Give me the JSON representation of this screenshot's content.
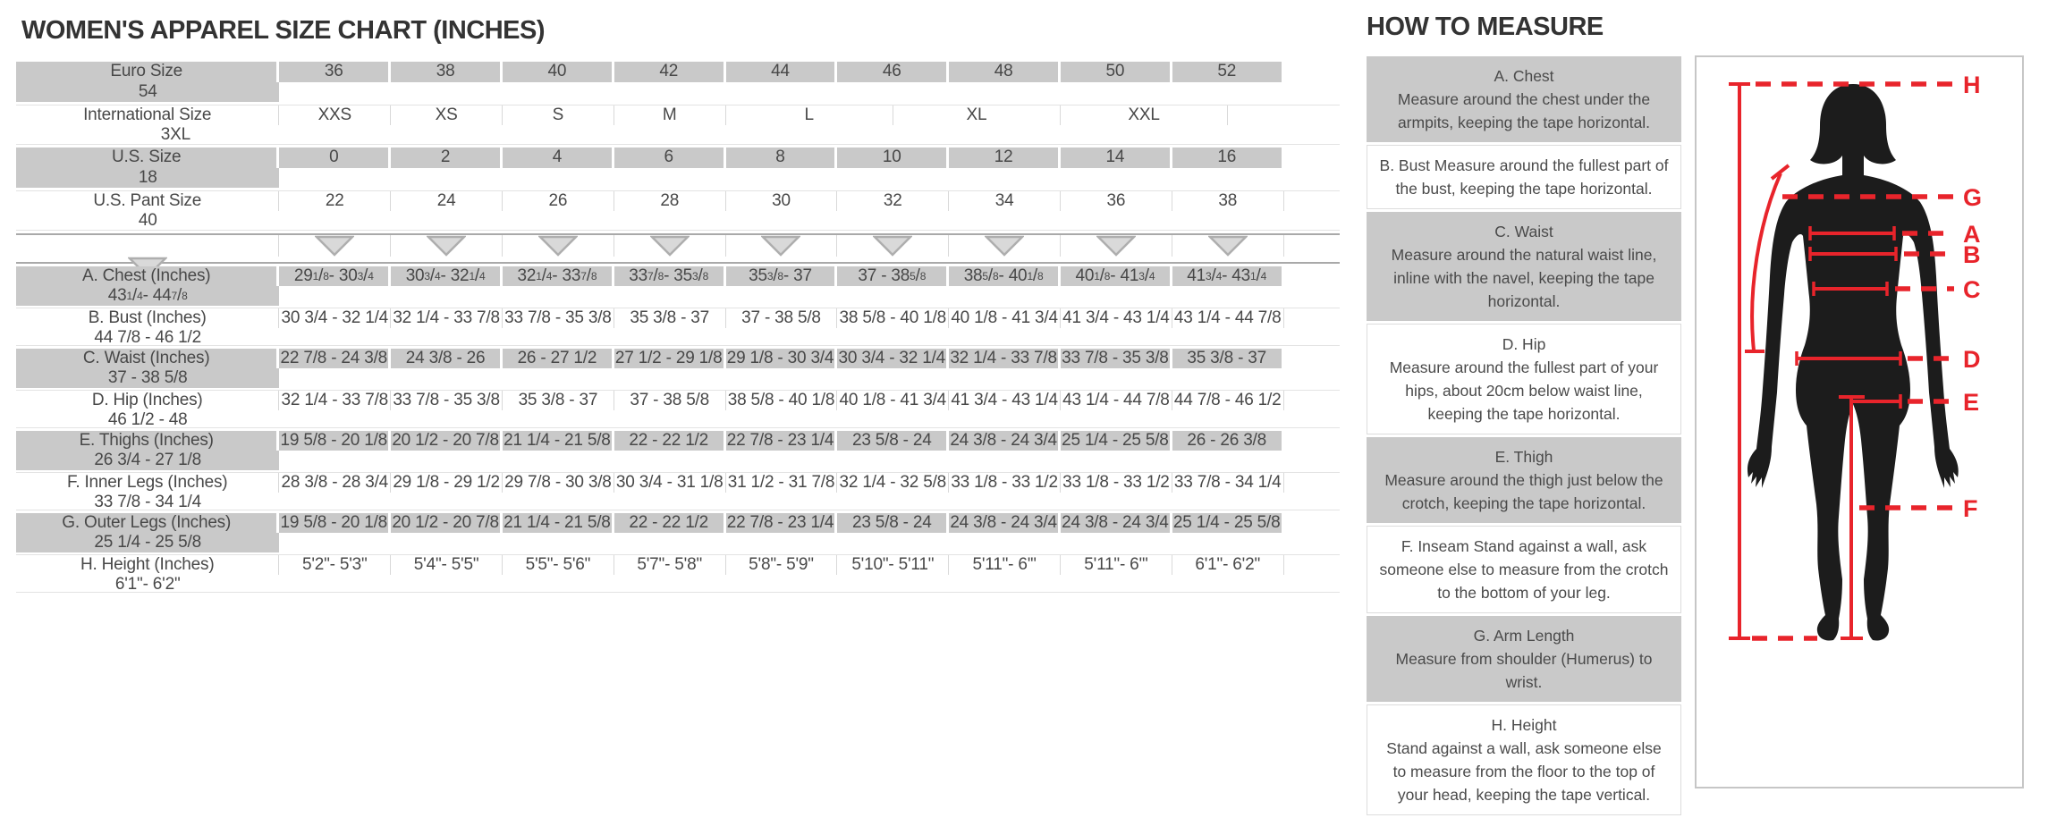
{
  "size_chart": {
    "title": "WOMEN'S APPAREL SIZE CHART (INCHES)",
    "rows": [
      {
        "label": "Euro Size",
        "shade": "gray",
        "cells": [
          "36",
          "38",
          "40",
          "42",
          "44",
          "46",
          "48",
          "50",
          "52",
          "54"
        ]
      },
      {
        "label": "International Size",
        "shade": "white",
        "cells": [
          {
            "text": "XXS",
            "span": 2
          },
          {
            "text": "XS",
            "span": 2
          },
          {
            "text": "S",
            "span": 2
          },
          {
            "text": "M",
            "span": 2
          },
          {
            "text": "L",
            "span": 3
          },
          {
            "text": "XL",
            "span": 3
          },
          {
            "text": "XXL",
            "span": 3
          },
          {
            "text": "3XL",
            "span": 3
          }
        ]
      },
      {
        "label": "U.S. Size",
        "shade": "gray",
        "cells": [
          "0",
          "2",
          "4",
          "6",
          "8",
          "10",
          "12",
          "14",
          "16",
          "18"
        ]
      },
      {
        "label": "U.S. Pant Size",
        "shade": "white",
        "cells": [
          "22",
          "24",
          "26",
          "28",
          "30",
          "32",
          "34",
          "36",
          "38",
          "40"
        ]
      },
      {
        "label": "",
        "shade": "white",
        "arrows": true
      },
      {
        "label": "A. Chest (Inches)",
        "shade": "gray",
        "fractions": true,
        "cells": [
          "29 1/8 - 30 3/4",
          "30 3/4 - 32 1/4",
          "32 1/4 - 33 7/8",
          "33 7/8 - 35 3/8",
          "35 3/8 - 37",
          "37 - 38 5/8",
          "38 5/8 - 40 1/8",
          "40 1/8 - 41 3/4",
          "41 3/4 - 43 1/4",
          "43 1/4 - 44 7/8"
        ]
      },
      {
        "label": "B. Bust (Inches)",
        "shade": "white",
        "cells": [
          "30 3/4 - 32 1/4",
          "32 1/4 - 33 7/8",
          "33 7/8 - 35 3/8",
          "35 3/8 - 37",
          "37 - 38 5/8",
          "38 5/8 - 40 1/8",
          "40 1/8 - 41 3/4",
          "41 3/4 - 43 1/4",
          "43 1/4 - 44 7/8",
          "44 7/8 - 46 1/2"
        ]
      },
      {
        "label": "C. Waist (Inches)",
        "shade": "gray",
        "cells": [
          "22 7/8 - 24 3/8",
          "24 3/8 - 26",
          "26 - 27 1/2",
          "27 1/2 - 29 1/8",
          "29 1/8 - 30 3/4",
          "30 3/4 - 32 1/4",
          "32 1/4 - 33 7/8",
          "33 7/8 - 35 3/8",
          "35 3/8 - 37",
          "37 - 38 5/8"
        ]
      },
      {
        "label": "D. Hip (Inches)",
        "shade": "white",
        "cells": [
          "32 1/4 - 33 7/8",
          "33 7/8 - 35 3/8",
          "35 3/8 - 37",
          "37 - 38 5/8",
          "38 5/8 - 40 1/8",
          "40 1/8 - 41 3/4",
          "41 3/4 - 43 1/4",
          "43 1/4 - 44 7/8",
          "44 7/8 - 46 1/2",
          "46 1/2 - 48"
        ]
      },
      {
        "label": "E. Thighs (Inches)",
        "shade": "gray",
        "cells": [
          "19 5/8 - 20 1/8",
          "20 1/2 - 20 7/8",
          "21 1/4 - 21 5/8",
          "22 - 22 1/2",
          "22 7/8 - 23 1/4",
          "23 5/8 - 24",
          "24 3/8 - 24 3/4",
          "25 1/4 - 25 5/8",
          "26 - 26 3/8",
          "26 3/4 - 27 1/8"
        ]
      },
      {
        "label": "F. Inner Legs (Inches)",
        "shade": "white",
        "cells": [
          "28 3/8 - 28 3/4",
          "29 1/8 - 29 1/2",
          "29 7/8 - 30 3/8",
          "30 3/4 - 31 1/8",
          "31 1/2 - 31 7/8",
          "32 1/4 - 32 5/8",
          "33 1/8 - 33 1/2",
          "33 1/8 - 33 1/2",
          "33 7/8 - 34 1/4",
          "33 7/8 - 34 1/4"
        ]
      },
      {
        "label": "G. Outer Legs (Inches)",
        "shade": "gray",
        "cells": [
          "19 5/8 - 20 1/8",
          "20 1/2 - 20 7/8",
          "21 1/4 - 21 5/8",
          "22 - 22 1/2",
          "22 7/8 - 23 1/4",
          "23 5/8 - 24",
          "24 3/8 - 24 3/4",
          "24 3/8 - 24 3/4",
          "25 1/4 - 25 5/8",
          "25 1/4 - 25 5/8"
        ]
      },
      {
        "label": "H. Height (Inches)",
        "shade": "white",
        "cells": [
          "5'2\"- 5'3\"",
          "5'4\"- 5'5\"",
          "5'5\"- 5'6\"",
          "5'7\"- 5'8\"",
          "5'8\"- 5'9\"",
          "5'10\"- 5'11\"",
          "5'11\"- 6'\"",
          "5'11\"- 6'\"",
          "6'1\"- 6'2\"",
          "6'1\"- 6'2\""
        ]
      }
    ]
  },
  "how_to_measure": {
    "title": "HOW TO MEASURE",
    "items": [
      {
        "heading": "A. Chest",
        "shade": "gray",
        "text": "Measure around the chest under the armpits, keeping the tape horizontal."
      },
      {
        "heading": "",
        "shade": "white",
        "text": "B. Bust Measure around the fullest part of the bust, keeping the tape horizontal."
      },
      {
        "heading": "C. Waist",
        "shade": "gray",
        "text": "Measure around the natural waist line, inline with the navel, keeping the tape horizontal."
      },
      {
        "heading": "D. Hip",
        "shade": "white",
        "text": "Measure around the fullest part of your hips, about 20cm below waist line, keeping the tape horizontal."
      },
      {
        "heading": "E. Thigh",
        "shade": "gray",
        "text": "Measure around the thigh just below the crotch, keeping the tape horizontal."
      },
      {
        "heading": "",
        "shade": "white",
        "text": "F. Inseam Stand against a wall, ask someone else to measure from the crotch to the bottom of your leg."
      },
      {
        "heading": "G. Arm Length",
        "shade": "gray",
        "text": "Measure from shoulder (Humerus) to wrist."
      },
      {
        "heading": "H. Height",
        "shade": "white",
        "text": "Stand against a wall, ask someone else to measure from the floor to the top of your head, keeping the tape vertical."
      }
    ]
  },
  "figure": {
    "labels": [
      "H",
      "G",
      "A",
      "B",
      "C",
      "D",
      "E",
      "F"
    ]
  },
  "colors": {
    "annotation_red": "#e8242b",
    "row_gray": "#c9c9c9",
    "text_gray": "#484848"
  }
}
